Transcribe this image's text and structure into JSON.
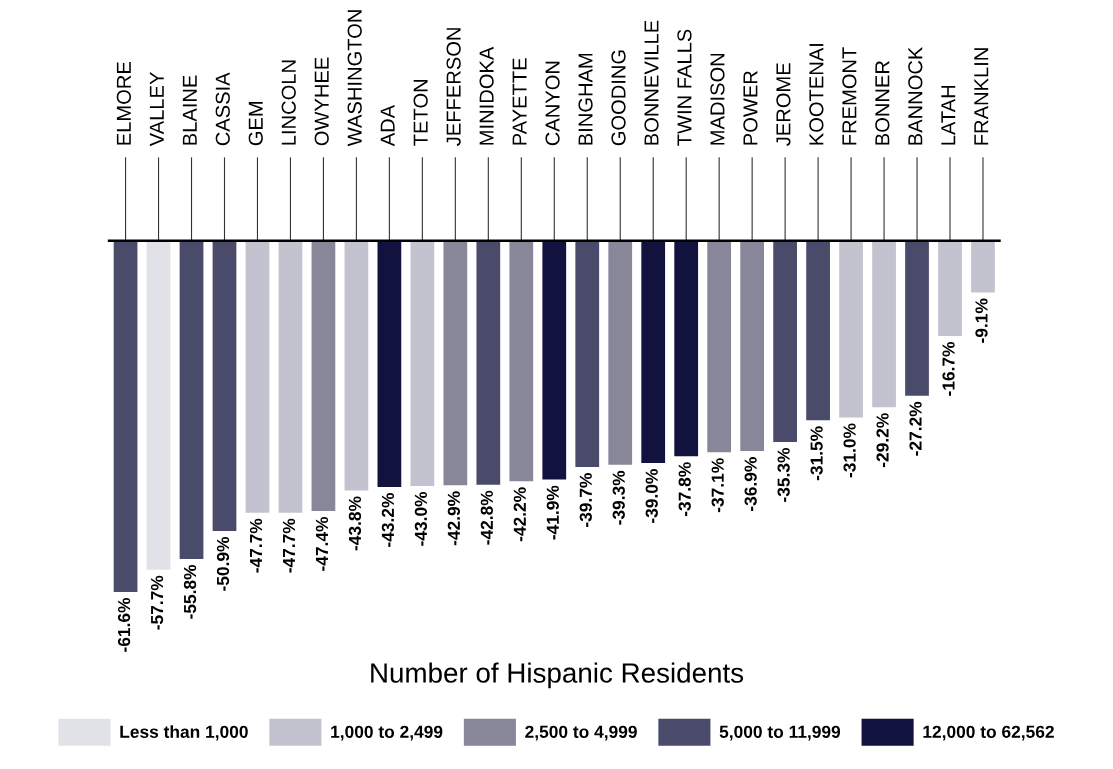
{
  "chart_data": {
    "type": "bar",
    "legend": "bottom",
    "legend_title": "Number of Hispanic Residents",
    "categories": [
      "ELMORE",
      "VALLEY",
      "BLAINE",
      "CASSIA",
      "GEM",
      "LINCOLN",
      "OWYHEE",
      "WASHINGTON",
      "ADA",
      "TETON",
      "JEFFERSON",
      "MINIDOKA",
      "PAYETTE",
      "CANYON",
      "BINGHAM",
      "GOODING",
      "BONNEVILLE",
      "TWIN FALLS",
      "MADISON",
      "POWER",
      "JEROME",
      "KOOTENAI",
      "FREMONT",
      "BONNER",
      "BANNOCK",
      "LATAH",
      "FRANKLIN"
    ],
    "series": [
      {
        "name": "Less than 1,000",
        "color": "#e1e1e8",
        "values": [
          null,
          -57.7,
          null,
          null,
          null,
          null,
          null,
          null,
          null,
          null,
          null,
          null,
          null,
          null,
          null,
          null,
          null,
          null,
          null,
          null,
          null,
          null,
          null,
          null,
          null,
          null,
          null
        ],
        "value_labels": [
          null,
          "-57.7%",
          null,
          null,
          null,
          null,
          null,
          null,
          null,
          null,
          null,
          null,
          null,
          null,
          null,
          null,
          null,
          null,
          null,
          null,
          null,
          null,
          null,
          null,
          null,
          null,
          null
        ]
      },
      {
        "name": "1,000 to 2,499",
        "color": "#c3c3cf",
        "values": [
          null,
          null,
          null,
          null,
          -47.7,
          -47.7,
          null,
          -43.8,
          null,
          -43.0,
          null,
          null,
          null,
          null,
          null,
          null,
          null,
          null,
          null,
          null,
          null,
          null,
          -31.0,
          -29.2,
          null,
          -16.7,
          -9.1
        ],
        "value_labels": [
          null,
          null,
          null,
          null,
          "-47.7%",
          "-47.7%",
          null,
          "-43.8%",
          null,
          "-43.0%",
          null,
          null,
          null,
          null,
          null,
          null,
          null,
          null,
          null,
          null,
          null,
          null,
          "-31.0%",
          "-29.2%",
          null,
          "-16.7%",
          "-9.1%"
        ]
      },
      {
        "name": "2,500 to 4,999",
        "color": "#878799",
        "values": [
          null,
          null,
          null,
          null,
          null,
          null,
          -47.4,
          null,
          null,
          null,
          -42.9,
          null,
          -42.2,
          null,
          null,
          -39.3,
          null,
          null,
          -37.1,
          -36.9,
          null,
          null,
          null,
          null,
          null,
          null,
          null
        ],
        "value_labels": [
          null,
          null,
          null,
          null,
          null,
          null,
          "-47.4%",
          null,
          null,
          null,
          "-42.9%",
          null,
          "-42.2%",
          null,
          null,
          "-39.3%",
          null,
          null,
          "-37.1%",
          "-36.9%",
          null,
          null,
          null,
          null,
          null,
          null,
          null
        ]
      },
      {
        "name": "5,000 to 11,999",
        "color": "#4a4a6a",
        "values": [
          -61.6,
          null,
          -55.8,
          -50.9,
          null,
          null,
          null,
          null,
          null,
          null,
          null,
          -42.8,
          null,
          null,
          -39.7,
          null,
          null,
          null,
          null,
          null,
          -35.3,
          -31.5,
          null,
          null,
          -27.2,
          null,
          null
        ],
        "value_labels": [
          "-61.6%",
          null,
          "-55.8%",
          "-50.9%",
          null,
          null,
          null,
          null,
          null,
          null,
          null,
          "-42.8%",
          null,
          null,
          "-39.7%",
          null,
          null,
          null,
          null,
          null,
          "-35.3%",
          "-31.5%",
          null,
          null,
          "-27.2%",
          null,
          null
        ]
      },
      {
        "name": "12,000 to 62,562",
        "color": "#12123e",
        "values": [
          null,
          null,
          null,
          null,
          null,
          null,
          null,
          null,
          -43.2,
          null,
          null,
          null,
          null,
          -41.9,
          null,
          null,
          -39.0,
          -37.8,
          null,
          null,
          null,
          null,
          null,
          null,
          null,
          null,
          null
        ],
        "value_labels": [
          null,
          null,
          null,
          null,
          null,
          null,
          null,
          null,
          "-43.2%",
          null,
          null,
          null,
          null,
          "-41.9%",
          null,
          null,
          "-39.0%",
          "-37.8%",
          null,
          null,
          null,
          null,
          null,
          null,
          null,
          null,
          null
        ]
      }
    ]
  }
}
